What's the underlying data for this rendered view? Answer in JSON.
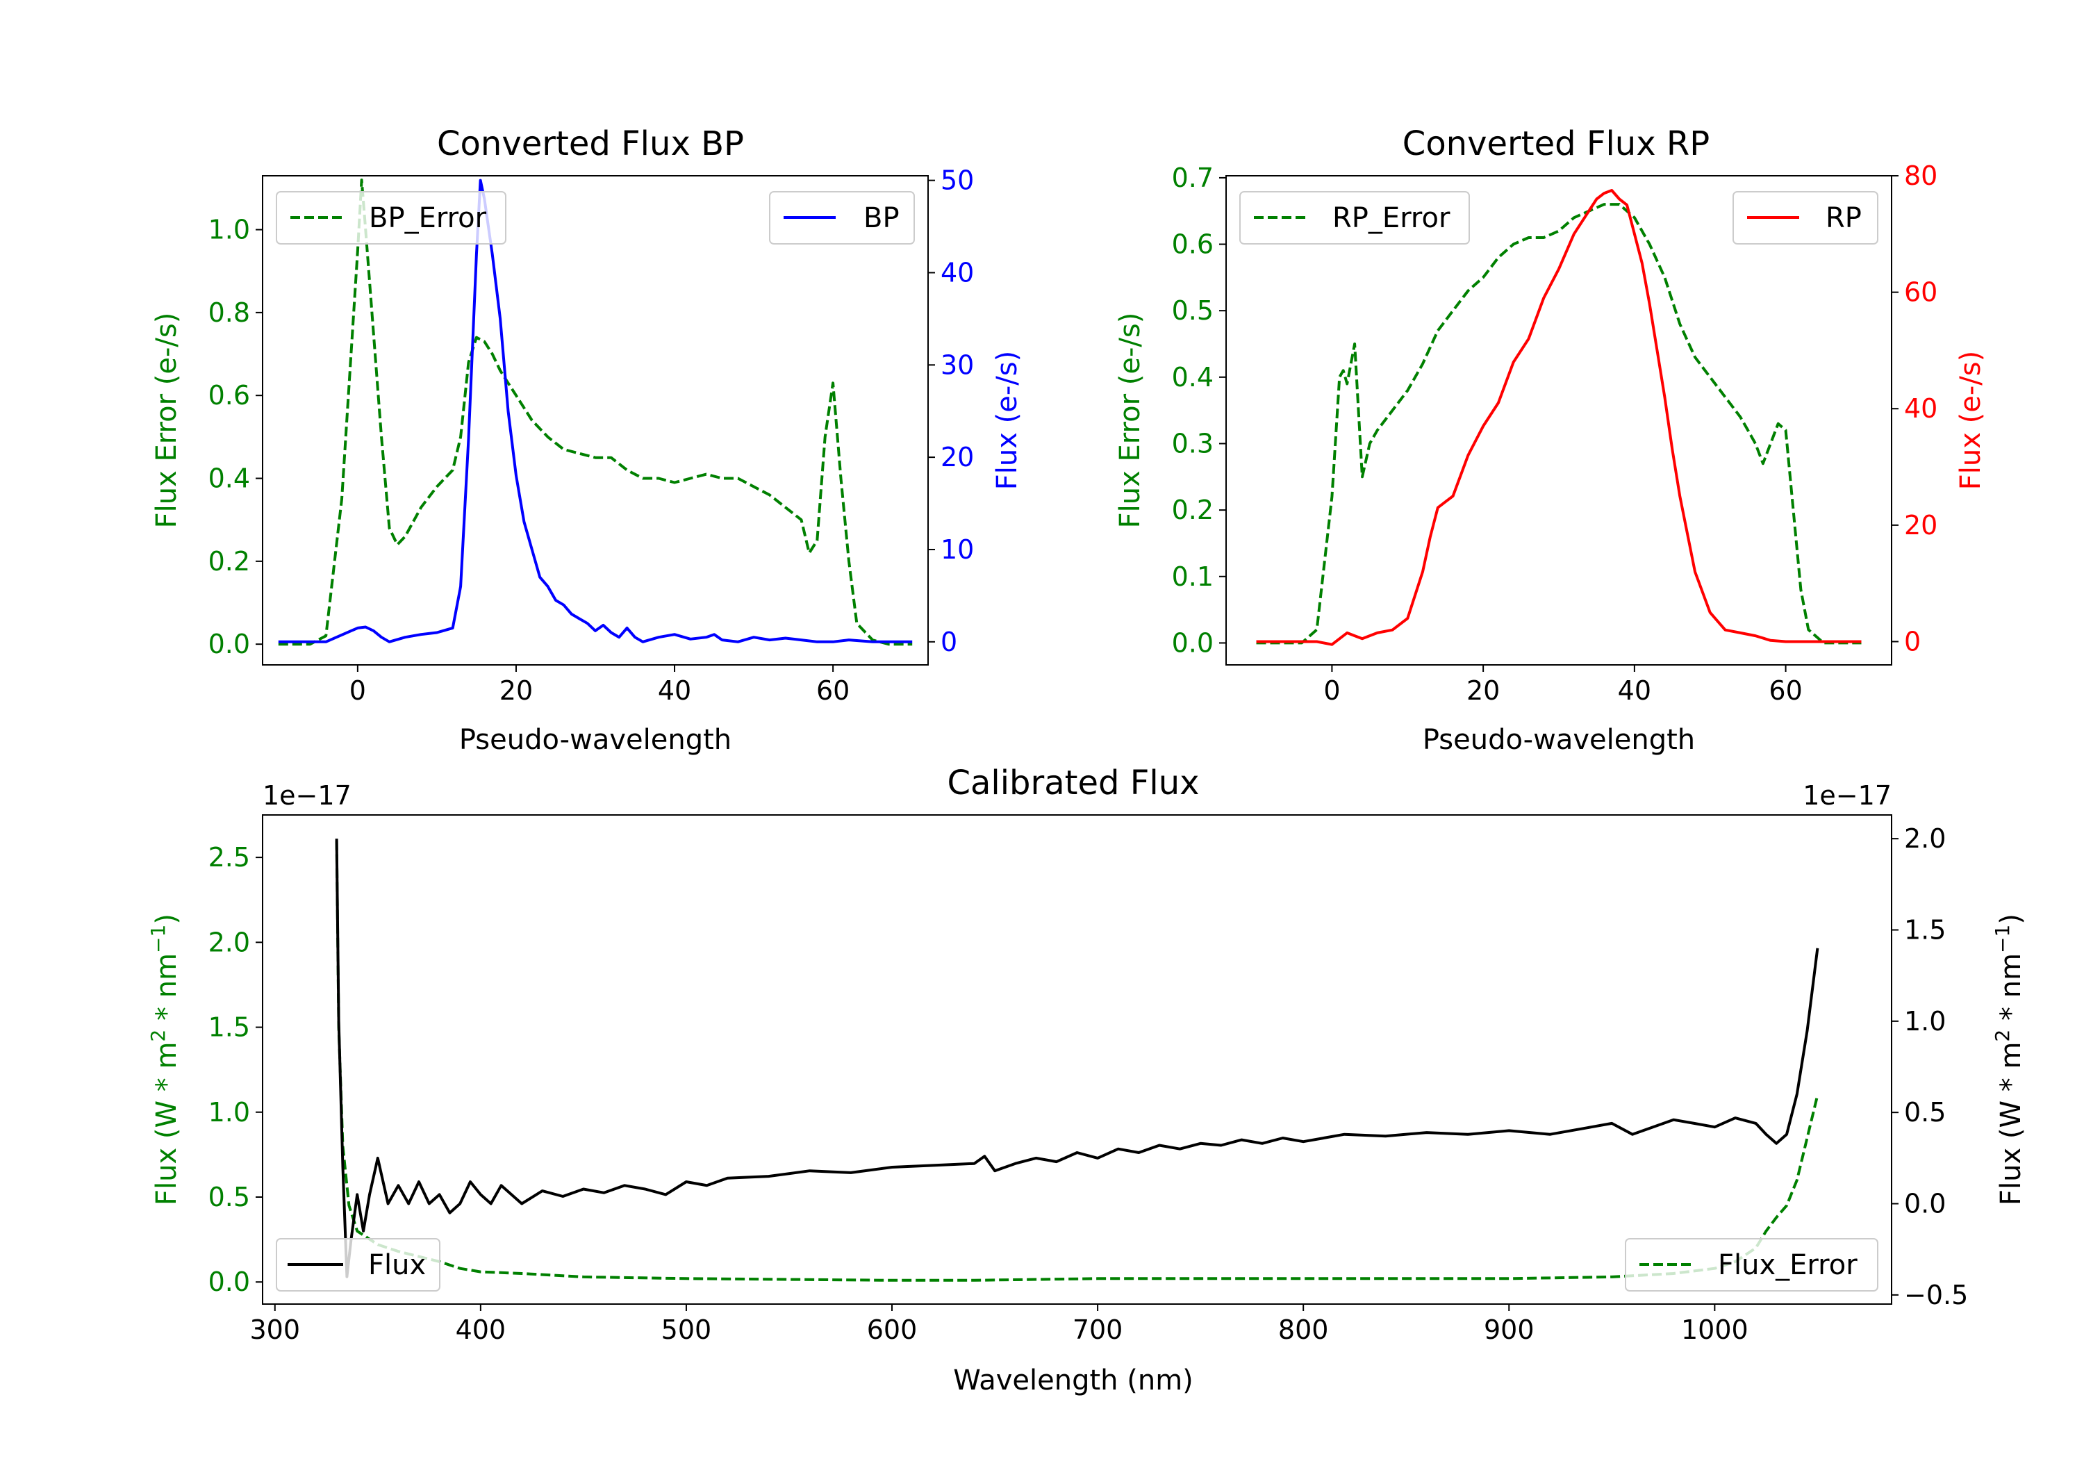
{
  "colors": {
    "bp": "#0000ff",
    "rp": "#ff0000",
    "error": "#008000",
    "flux": "#000000",
    "axis": "#000000",
    "background": "#ffffff"
  },
  "chart_data": [
    {
      "id": "bp",
      "type": "line",
      "title": "Converted Flux BP",
      "xlabel": "Pseudo-wavelength",
      "ylabel_left": "Flux Error (e-/s)",
      "ylabel_right": "Flux (e-/s)",
      "xlim": [
        -12,
        72
      ],
      "ylim_left": [
        -0.05,
        1.13
      ],
      "ylim_right": [
        -2.5,
        50.5
      ],
      "xticks": [
        0,
        20,
        40,
        60
      ],
      "yticks_left": [
        0.0,
        0.2,
        0.4,
        0.6,
        0.8,
        1.0
      ],
      "ytick_labels_left": [
        "0.0",
        "0.2",
        "0.4",
        "0.6",
        "0.8",
        "1.0"
      ],
      "yticks_right": [
        0,
        10,
        20,
        30,
        40,
        50
      ],
      "series": [
        {
          "name": "BP_Error",
          "axis": "left",
          "style": "dashed",
          "color": "#008000",
          "x": [
            -10,
            -6,
            -4,
            -2,
            0,
            0.5,
            1,
            2,
            3,
            4,
            5,
            6,
            8,
            10,
            12,
            13,
            14,
            15,
            16,
            17,
            18,
            19,
            20,
            21,
            22,
            24,
            26,
            28,
            30,
            32,
            34,
            36,
            38,
            40,
            42,
            44,
            46,
            48,
            50,
            52,
            54,
            56,
            57,
            58,
            59,
            60,
            61,
            62,
            63,
            65,
            67,
            70
          ],
          "values": [
            0,
            0,
            0.02,
            0.35,
            0.95,
            1.12,
            1.0,
            0.75,
            0.5,
            0.28,
            0.24,
            0.26,
            0.33,
            0.38,
            0.42,
            0.5,
            0.68,
            0.74,
            0.73,
            0.7,
            0.66,
            0.63,
            0.6,
            0.57,
            0.54,
            0.5,
            0.47,
            0.46,
            0.45,
            0.45,
            0.42,
            0.4,
            0.4,
            0.39,
            0.4,
            0.41,
            0.4,
            0.4,
            0.38,
            0.36,
            0.33,
            0.3,
            0.22,
            0.25,
            0.5,
            0.63,
            0.4,
            0.2,
            0.05,
            0.01,
            0,
            0
          ]
        },
        {
          "name": "BP",
          "axis": "right",
          "style": "solid",
          "color": "#0000ff",
          "x": [
            -10,
            -4,
            0,
            1,
            2,
            3,
            4,
            6,
            8,
            10,
            12,
            13,
            14,
            15,
            15.5,
            16,
            17,
            18,
            19,
            20,
            21,
            22,
            23,
            24,
            25,
            26,
            27,
            28,
            29,
            30,
            31,
            32,
            33,
            34,
            35,
            36,
            38,
            40,
            42,
            44,
            45,
            46,
            48,
            50,
            52,
            54,
            56,
            58,
            60,
            62,
            65,
            70
          ],
          "values": [
            0,
            0,
            1.5,
            1.6,
            1.2,
            0.5,
            0.0,
            0.5,
            0.8,
            1.0,
            1.5,
            6,
            22,
            42,
            50,
            48,
            42,
            35,
            25,
            18,
            13,
            10,
            7,
            6,
            4.5,
            4,
            3,
            2.5,
            2,
            1.2,
            1.8,
            1.0,
            0.5,
            1.5,
            0.5,
            0.0,
            0.5,
            0.8,
            0.3,
            0.5,
            0.8,
            0.2,
            0.0,
            0.5,
            0.2,
            0.4,
            0.2,
            0.0,
            0.0,
            0.2,
            0.0,
            0.0
          ]
        }
      ],
      "legend": [
        {
          "label": "BP_Error",
          "position": "top-left"
        },
        {
          "label": "BP",
          "position": "top-right"
        }
      ]
    },
    {
      "id": "rp",
      "type": "line",
      "title": "Converted Flux RP",
      "xlabel": "Pseudo-wavelength",
      "ylabel_left": "Flux Error (e-/s)",
      "ylabel_right": "Flux (e-/s)",
      "xlim": [
        -14,
        74
      ],
      "ylim_left": [
        -0.033,
        0.703
      ],
      "ylim_right": [
        -4,
        80
      ],
      "xticks": [
        0,
        20,
        40,
        60
      ],
      "yticks_left": [
        0.0,
        0.1,
        0.2,
        0.3,
        0.4,
        0.5,
        0.6,
        0.7
      ],
      "ytick_labels_left": [
        "0.0",
        "0.1",
        "0.2",
        "0.3",
        "0.4",
        "0.5",
        "0.6",
        "0.7"
      ],
      "yticks_right": [
        0,
        20,
        40,
        60,
        80
      ],
      "series": [
        {
          "name": "RP_Error",
          "axis": "left",
          "style": "dashed",
          "color": "#008000",
          "x": [
            -10,
            -4,
            -2,
            0,
            1,
            1.5,
            2,
            3,
            4,
            5,
            6,
            8,
            10,
            12,
            14,
            16,
            18,
            20,
            22,
            24,
            26,
            28,
            30,
            32,
            34,
            36,
            38,
            40,
            42,
            44,
            46,
            48,
            50,
            52,
            54,
            55,
            56,
            57,
            58,
            59,
            60,
            61,
            62,
            63,
            65,
            70
          ],
          "values": [
            0,
            0,
            0.02,
            0.22,
            0.4,
            0.41,
            0.39,
            0.45,
            0.25,
            0.3,
            0.32,
            0.35,
            0.38,
            0.42,
            0.47,
            0.5,
            0.53,
            0.55,
            0.58,
            0.6,
            0.61,
            0.61,
            0.62,
            0.64,
            0.65,
            0.66,
            0.66,
            0.64,
            0.6,
            0.55,
            0.48,
            0.43,
            0.4,
            0.37,
            0.34,
            0.32,
            0.3,
            0.27,
            0.3,
            0.33,
            0.32,
            0.2,
            0.08,
            0.02,
            0,
            0
          ]
        },
        {
          "name": "RP",
          "axis": "right",
          "style": "solid",
          "color": "#ff0000",
          "x": [
            -10,
            -4,
            -2,
            0,
            1,
            2,
            3,
            4,
            6,
            8,
            10,
            12,
            13,
            14,
            15,
            16,
            18,
            20,
            22,
            24,
            26,
            28,
            30,
            32,
            34,
            35,
            36,
            37,
            38,
            39,
            40,
            41,
            42,
            43,
            44,
            45,
            46,
            48,
            50,
            52,
            54,
            56,
            58,
            60,
            62,
            70
          ],
          "values": [
            0,
            0,
            0,
            -0.5,
            0.5,
            1.5,
            1.0,
            0.5,
            1.5,
            2,
            4,
            12,
            18,
            23,
            24,
            25,
            32,
            37,
            41,
            48,
            52,
            59,
            64,
            70,
            74,
            76,
            77,
            77.5,
            76,
            75,
            70,
            65,
            58,
            50,
            42,
            33,
            25,
            12,
            5,
            2,
            1.5,
            1,
            0.2,
            0,
            0,
            0
          ]
        }
      ],
      "legend": [
        {
          "label": "RP_Error",
          "position": "top-left"
        },
        {
          "label": "RP",
          "position": "top-right"
        }
      ]
    },
    {
      "id": "calibrated",
      "type": "line",
      "title": "Calibrated Flux",
      "xlabel": "Wavelength (nm)",
      "ylabel_left": "Flux (W * m2 * nm-1)",
      "ylabel_right": "Flux (W * m2 * nm-1)",
      "offset_left": "1e−17",
      "offset_right": "1e−17",
      "xlim": [
        294,
        1086
      ],
      "ylim_left": [
        -0.13,
        2.75
      ],
      "ylim_right": [
        -0.55,
        2.13
      ],
      "xticks": [
        300,
        400,
        500,
        600,
        700,
        800,
        900,
        1000
      ],
      "yticks_left": [
        0.0,
        0.5,
        1.0,
        1.5,
        2.0,
        2.5
      ],
      "ytick_labels_left": [
        "0.0",
        "0.5",
        "1.0",
        "1.5",
        "2.0",
        "2.5"
      ],
      "yticks_right": [
        -0.5,
        0.0,
        0.5,
        1.0,
        1.5,
        2.0
      ],
      "ytick_labels_right": [
        "−0.5",
        "0.0",
        "0.5",
        "1.0",
        "1.5",
        "2.0"
      ],
      "series": [
        {
          "name": "Flux_Error",
          "axis": "left",
          "style": "dashed",
          "color": "#008000",
          "x": [
            330,
            331,
            333,
            336,
            340,
            350,
            360,
            370,
            380,
            390,
            400,
            420,
            450,
            500,
            600,
            640,
            700,
            800,
            900,
            950,
            980,
            1000,
            1010,
            1020,
            1025,
            1030,
            1035,
            1040,
            1045,
            1050
          ],
          "values": [
            2.6,
            1.5,
            0.8,
            0.45,
            0.3,
            0.22,
            0.18,
            0.15,
            0.12,
            0.08,
            0.06,
            0.05,
            0.03,
            0.02,
            0.01,
            0.01,
            0.02,
            0.02,
            0.02,
            0.03,
            0.05,
            0.08,
            0.12,
            0.2,
            0.3,
            0.38,
            0.45,
            0.6,
            0.85,
            1.1
          ]
        },
        {
          "name": "Flux",
          "axis": "right",
          "style": "solid",
          "color": "#000000",
          "x": [
            330,
            331,
            333,
            335,
            337,
            340,
            343,
            346,
            350,
            355,
            360,
            365,
            370,
            375,
            380,
            385,
            390,
            395,
            400,
            405,
            410,
            415,
            420,
            430,
            440,
            450,
            460,
            470,
            480,
            490,
            500,
            510,
            520,
            540,
            560,
            580,
            600,
            620,
            640,
            645,
            650,
            660,
            670,
            680,
            690,
            700,
            710,
            720,
            730,
            740,
            750,
            760,
            770,
            780,
            790,
            800,
            820,
            840,
            860,
            880,
            900,
            920,
            940,
            950,
            960,
            970,
            980,
            990,
            1000,
            1010,
            1020,
            1025,
            1030,
            1035,
            1040,
            1045,
            1050
          ],
          "values": [
            2.0,
            1.0,
            0.2,
            -0.4,
            -0.2,
            0.05,
            -0.15,
            0.05,
            0.25,
            0.0,
            0.1,
            0.0,
            0.12,
            0.0,
            0.05,
            -0.05,
            0.0,
            0.12,
            0.05,
            0.0,
            0.1,
            0.05,
            0.0,
            0.07,
            0.04,
            0.08,
            0.06,
            0.1,
            0.08,
            0.05,
            0.12,
            0.1,
            0.14,
            0.15,
            0.18,
            0.17,
            0.2,
            0.21,
            0.22,
            0.26,
            0.18,
            0.22,
            0.25,
            0.23,
            0.28,
            0.25,
            0.3,
            0.28,
            0.32,
            0.3,
            0.33,
            0.32,
            0.35,
            0.33,
            0.36,
            0.34,
            0.38,
            0.37,
            0.39,
            0.38,
            0.4,
            0.38,
            0.42,
            0.44,
            0.38,
            0.42,
            0.46,
            0.44,
            0.42,
            0.47,
            0.44,
            0.38,
            0.33,
            0.38,
            0.6,
            0.95,
            1.4
          ]
        }
      ],
      "legend": [
        {
          "label": "Flux",
          "position": "lower-left"
        },
        {
          "label": "Flux_Error",
          "position": "lower-right"
        }
      ]
    }
  ]
}
